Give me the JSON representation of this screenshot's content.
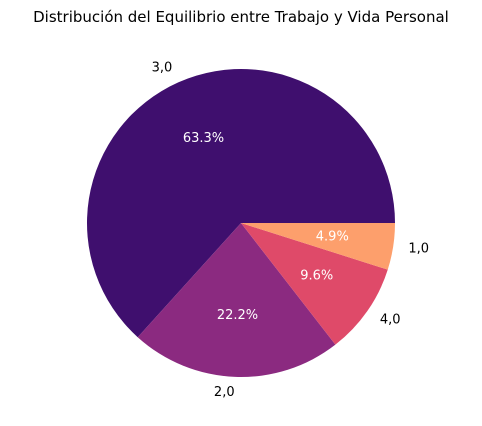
{
  "chart_data": {
    "type": "pie",
    "title": "Distribución del Equilibrio entre Trabajo y Vida Personal",
    "start_angle_deg": 0,
    "direction": "counterclockwise",
    "slices": [
      {
        "label": "3,0",
        "value": 63.3,
        "pct_label": "63.3%",
        "color": "#3f0f6e"
      },
      {
        "label": "2,0",
        "value": 22.2,
        "pct_label": "22.2%",
        "color": "#8b2a80"
      },
      {
        "label": "4,0",
        "value": 9.6,
        "pct_label": "9.6%",
        "color": "#df4a69"
      },
      {
        "label": "1,0",
        "value": 4.9,
        "pct_label": "4.9%",
        "color": "#fd9f6c"
      }
    ]
  }
}
